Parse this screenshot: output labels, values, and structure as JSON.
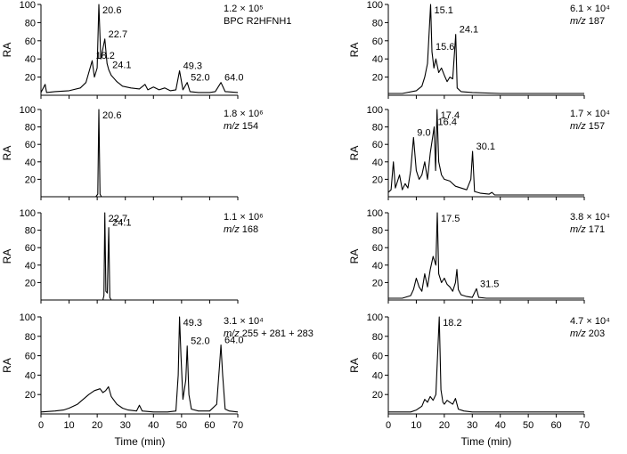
{
  "chart_data": [
    {
      "type": "line",
      "column": "left",
      "row": 0,
      "ylabel": "RA",
      "ylim": [
        0,
        100
      ],
      "xlim": [
        0,
        70
      ],
      "yticks": [
        20,
        40,
        60,
        80,
        100
      ],
      "info": [
        "1.2 × 10⁵",
        "BPC R2HFNH1"
      ],
      "info_italic": [
        false,
        false
      ],
      "peaks": [
        {
          "x": 18.2,
          "y": 38,
          "label": "18.2"
        },
        {
          "x": 20.6,
          "y": 100,
          "label": "20.6"
        },
        {
          "x": 22.7,
          "y": 62,
          "label": "22.7"
        },
        {
          "x": 24.1,
          "y": 28,
          "label": "24.1"
        },
        {
          "x": 49.3,
          "y": 27,
          "label": "49.3"
        },
        {
          "x": 52.0,
          "y": 14,
          "label": "52.0"
        },
        {
          "x": 64.0,
          "y": 14,
          "label": "64.0"
        }
      ],
      "baseline": [
        [
          0,
          3
        ],
        [
          1.5,
          12
        ],
        [
          2,
          3
        ],
        [
          5,
          4
        ],
        [
          10,
          5
        ],
        [
          14,
          8
        ],
        [
          16,
          14
        ],
        [
          17,
          25
        ],
        [
          18.2,
          38
        ],
        [
          19,
          20
        ],
        [
          20,
          30
        ],
        [
          20.6,
          100
        ],
        [
          21.3,
          40
        ],
        [
          22.7,
          62
        ],
        [
          23.5,
          35
        ],
        [
          24.1,
          28
        ],
        [
          25,
          22
        ],
        [
          27,
          15
        ],
        [
          29,
          10
        ],
        [
          32,
          8
        ],
        [
          35,
          7
        ],
        [
          37,
          12
        ],
        [
          38,
          6
        ],
        [
          40,
          9
        ],
        [
          42,
          6
        ],
        [
          44,
          8
        ],
        [
          46,
          5
        ],
        [
          48,
          6
        ],
        [
          49.3,
          27
        ],
        [
          50.5,
          6
        ],
        [
          52,
          14
        ],
        [
          53,
          4
        ],
        [
          56,
          3
        ],
        [
          60,
          3
        ],
        [
          62,
          4
        ],
        [
          64,
          14
        ],
        [
          65.5,
          4
        ],
        [
          70,
          3
        ]
      ]
    },
    {
      "type": "line",
      "column": "left",
      "row": 1,
      "ylabel": "RA",
      "ylim": [
        0,
        100
      ],
      "xlim": [
        0,
        70
      ],
      "yticks": [
        20,
        40,
        60,
        80,
        100
      ],
      "info": [
        "1.8 × 10⁶",
        "m/z 154"
      ],
      "info_italic": [
        false,
        true
      ],
      "peaks": [
        {
          "x": 20.6,
          "y": 100,
          "label": "20.6"
        }
      ],
      "baseline": [
        [
          0,
          0
        ],
        [
          19.5,
          0
        ],
        [
          20.2,
          3
        ],
        [
          20.6,
          100
        ],
        [
          21,
          3
        ],
        [
          21.5,
          0
        ],
        [
          70,
          0
        ]
      ]
    },
    {
      "type": "line",
      "column": "left",
      "row": 2,
      "ylabel": "RA",
      "ylim": [
        0,
        100
      ],
      "xlim": [
        0,
        70
      ],
      "yticks": [
        20,
        40,
        60,
        80,
        100
      ],
      "info": [
        "1.1 × 10⁶",
        "m/z 168"
      ],
      "info_italic": [
        false,
        true
      ],
      "peaks": [
        {
          "x": 22.7,
          "y": 100,
          "label": "22.7"
        },
        {
          "x": 24.1,
          "y": 83,
          "label": "24.1"
        }
      ],
      "baseline": [
        [
          0,
          0
        ],
        [
          22,
          0
        ],
        [
          22.4,
          5
        ],
        [
          22.7,
          100
        ],
        [
          23.1,
          10
        ],
        [
          23.6,
          8
        ],
        [
          24.1,
          83
        ],
        [
          24.5,
          3
        ],
        [
          25,
          0
        ],
        [
          70,
          0
        ]
      ]
    },
    {
      "type": "line",
      "column": "left",
      "row": 3,
      "ylabel": "RA",
      "ylim": [
        0,
        100
      ],
      "xlim": [
        0,
        70
      ],
      "yticks": [
        20,
        40,
        60,
        80,
        100
      ],
      "info": [
        "3.1 × 10⁴",
        "m/z 255 + 281 + 283"
      ],
      "info_italic": [
        false,
        true
      ],
      "peaks": [
        {
          "x": 49.3,
          "y": 100,
          "label": "49.3"
        },
        {
          "x": 52.0,
          "y": 70,
          "label": "52.0"
        },
        {
          "x": 64.0,
          "y": 71,
          "label": "64.0"
        }
      ],
      "baseline": [
        [
          0,
          2
        ],
        [
          5,
          3
        ],
        [
          8,
          4
        ],
        [
          10,
          6
        ],
        [
          13,
          10
        ],
        [
          15,
          15
        ],
        [
          17,
          20
        ],
        [
          19,
          24
        ],
        [
          21,
          26
        ],
        [
          22,
          22
        ],
        [
          23,
          24
        ],
        [
          24,
          28
        ],
        [
          25,
          18
        ],
        [
          27,
          10
        ],
        [
          29,
          6
        ],
        [
          31,
          4
        ],
        [
          34,
          3
        ],
        [
          35,
          9
        ],
        [
          36,
          3
        ],
        [
          40,
          2
        ],
        [
          45,
          2
        ],
        [
          48,
          3
        ],
        [
          48.8,
          40
        ],
        [
          49.3,
          100
        ],
        [
          49.8,
          60
        ],
        [
          50.5,
          15
        ],
        [
          51.5,
          35
        ],
        [
          52,
          70
        ],
        [
          52.6,
          20
        ],
        [
          53.5,
          5
        ],
        [
          56,
          3
        ],
        [
          60,
          3
        ],
        [
          62.5,
          10
        ],
        [
          63.5,
          50
        ],
        [
          64,
          71
        ],
        [
          64.6,
          40
        ],
        [
          65.5,
          5
        ],
        [
          67,
          3
        ],
        [
          70,
          2
        ]
      ]
    },
    {
      "type": "line",
      "column": "right",
      "row": 0,
      "ylabel": "RA",
      "ylim": [
        0,
        100
      ],
      "xlim": [
        0,
        70
      ],
      "yticks": [
        20,
        40,
        60,
        80,
        100
      ],
      "info": [
        "6.1 × 10⁴",
        "m/z 187"
      ],
      "info_italic": [
        false,
        true
      ],
      "peaks": [
        {
          "x": 15.1,
          "y": 100,
          "label": "15.1"
        },
        {
          "x": 15.6,
          "y": 48,
          "label": "15.6"
        },
        {
          "x": 24.1,
          "y": 67,
          "label": "24.1"
        }
      ],
      "baseline": [
        [
          0,
          2
        ],
        [
          5,
          2
        ],
        [
          10,
          5
        ],
        [
          12,
          10
        ],
        [
          13,
          20
        ],
        [
          14,
          35
        ],
        [
          15.1,
          100
        ],
        [
          15.6,
          48
        ],
        [
          16.3,
          30
        ],
        [
          17,
          40
        ],
        [
          18,
          25
        ],
        [
          19,
          30
        ],
        [
          20,
          22
        ],
        [
          21,
          15
        ],
        [
          22,
          20
        ],
        [
          23,
          18
        ],
        [
          24.1,
          67
        ],
        [
          24.6,
          8
        ],
        [
          26,
          4
        ],
        [
          30,
          3
        ],
        [
          40,
          2
        ],
        [
          50,
          2
        ],
        [
          60,
          2
        ],
        [
          70,
          2
        ]
      ]
    },
    {
      "type": "line",
      "column": "right",
      "row": 1,
      "ylabel": "RA",
      "ylim": [
        0,
        100
      ],
      "xlim": [
        0,
        70
      ],
      "yticks": [
        20,
        40,
        60,
        80,
        100
      ],
      "info": [
        "1.7 × 10⁴",
        "m/z 157"
      ],
      "info_italic": [
        false,
        true
      ],
      "peaks": [
        {
          "x": 9.0,
          "y": 68,
          "label": "9.0"
        },
        {
          "x": 16.4,
          "y": 80,
          "label": "16.4"
        },
        {
          "x": 17.4,
          "y": 100,
          "label": "17.4"
        },
        {
          "x": 30.1,
          "y": 52,
          "label": "30.1"
        }
      ],
      "baseline": [
        [
          0,
          5
        ],
        [
          1,
          8
        ],
        [
          1.8,
          40
        ],
        [
          2.5,
          10
        ],
        [
          4,
          25
        ],
        [
          5,
          8
        ],
        [
          6,
          15
        ],
        [
          7,
          10
        ],
        [
          8,
          30
        ],
        [
          9,
          68
        ],
        [
          10,
          30
        ],
        [
          11,
          20
        ],
        [
          12,
          25
        ],
        [
          13,
          40
        ],
        [
          14,
          20
        ],
        [
          15,
          50
        ],
        [
          16.4,
          80
        ],
        [
          16.9,
          30
        ],
        [
          17.4,
          100
        ],
        [
          18,
          40
        ],
        [
          19,
          25
        ],
        [
          20,
          20
        ],
        [
          22,
          18
        ],
        [
          24,
          12
        ],
        [
          26,
          10
        ],
        [
          28,
          8
        ],
        [
          29.5,
          20
        ],
        [
          30.1,
          52
        ],
        [
          30.8,
          6
        ],
        [
          33,
          4
        ],
        [
          36,
          3
        ],
        [
          37,
          5
        ],
        [
          38,
          2
        ],
        [
          45,
          2
        ],
        [
          55,
          2
        ],
        [
          70,
          2
        ]
      ]
    },
    {
      "type": "line",
      "column": "right",
      "row": 2,
      "ylabel": "RA",
      "ylim": [
        0,
        100
      ],
      "xlim": [
        0,
        70
      ],
      "yticks": [
        20,
        40,
        60,
        80,
        100
      ],
      "info": [
        "3.8 × 10⁴",
        "m/z 171"
      ],
      "info_italic": [
        false,
        true
      ],
      "peaks": [
        {
          "x": 17.5,
          "y": 100,
          "label": "17.5"
        },
        {
          "x": 31.5,
          "y": 13,
          "label": "31.5"
        }
      ],
      "baseline": [
        [
          0,
          2
        ],
        [
          5,
          2
        ],
        [
          8,
          5
        ],
        [
          9,
          12
        ],
        [
          10,
          25
        ],
        [
          11,
          15
        ],
        [
          12,
          10
        ],
        [
          13,
          30
        ],
        [
          14,
          15
        ],
        [
          15,
          35
        ],
        [
          16,
          50
        ],
        [
          17,
          40
        ],
        [
          17.5,
          100
        ],
        [
          18,
          30
        ],
        [
          19,
          20
        ],
        [
          20,
          25
        ],
        [
          21,
          18
        ],
        [
          22,
          15
        ],
        [
          23,
          10
        ],
        [
          24,
          20
        ],
        [
          24.5,
          35
        ],
        [
          25,
          12
        ],
        [
          26,
          6
        ],
        [
          28,
          4
        ],
        [
          30,
          3
        ],
        [
          31.5,
          13
        ],
        [
          32.3,
          3
        ],
        [
          35,
          2
        ],
        [
          40,
          2
        ],
        [
          50,
          2
        ],
        [
          60,
          2
        ],
        [
          70,
          2
        ]
      ]
    },
    {
      "type": "line",
      "column": "right",
      "row": 3,
      "ylabel": "RA",
      "ylim": [
        0,
        100
      ],
      "xlim": [
        0,
        70
      ],
      "yticks": [
        20,
        40,
        60,
        80,
        100
      ],
      "info": [
        "4.7 × 10⁴",
        "m/z 203"
      ],
      "info_italic": [
        false,
        true
      ],
      "xlabel": "Time (min)",
      "xticks": [
        0,
        10,
        20,
        30,
        40,
        50,
        60,
        70
      ],
      "peaks": [
        {
          "x": 18.2,
          "y": 100,
          "label": "18.2"
        }
      ],
      "baseline": [
        [
          0,
          2
        ],
        [
          5,
          2
        ],
        [
          8,
          2
        ],
        [
          10,
          4
        ],
        [
          12,
          8
        ],
        [
          13,
          15
        ],
        [
          14,
          12
        ],
        [
          15,
          18
        ],
        [
          16,
          14
        ],
        [
          17,
          20
        ],
        [
          18.2,
          100
        ],
        [
          18.8,
          25
        ],
        [
          19.5,
          12
        ],
        [
          20,
          10
        ],
        [
          21,
          14
        ],
        [
          22,
          12
        ],
        [
          23,
          10
        ],
        [
          24,
          16
        ],
        [
          25,
          5
        ],
        [
          27,
          3
        ],
        [
          30,
          2
        ],
        [
          40,
          2
        ],
        [
          50,
          2
        ],
        [
          60,
          2
        ],
        [
          70,
          2
        ]
      ]
    }
  ],
  "bottom_axes": {
    "left": {
      "xlabel": "Time (min)",
      "xticks": [
        "0",
        "10",
        "20",
        "30",
        "40",
        "50",
        "60",
        "70"
      ]
    },
    "right": {
      "xlabel": "Time (min)",
      "xticks": [
        "0",
        "10",
        "20",
        "30",
        "40",
        "50",
        "60",
        "70"
      ]
    }
  }
}
